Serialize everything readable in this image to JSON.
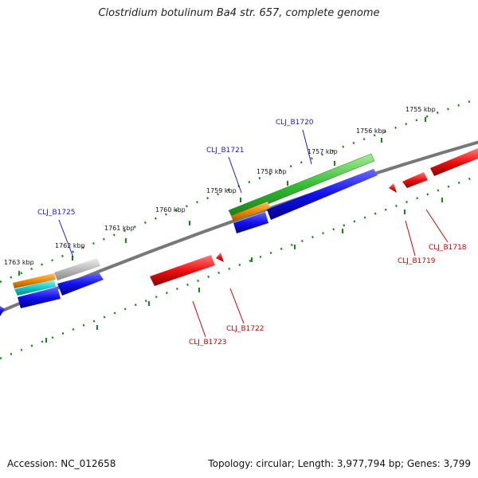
{
  "title": "Clostridium botulinum Ba4 str. 657, complete genome",
  "footer": {
    "accession": "Accession: NC_012658",
    "topology": "Topology: circular; Length: 3,977,794 bp; Genes: 3,799"
  },
  "scale_labels": [
    "1755 kbp",
    "1756 kbp",
    "1757 kbp",
    "1758 kbp",
    "1759 kbp",
    "1760 kbp",
    "1761 kbp",
    "1762 kbp",
    "1763 kbp"
  ],
  "gene_labels_top": [
    "CLJ_B1720",
    "CLJ_B1721",
    "CLJ_B1725"
  ],
  "gene_labels_bottom": [
    "CLJ_B1718",
    "CLJ_B1719",
    "CLJ_B1722",
    "CLJ_B1723"
  ],
  "colors": {
    "forward": "#1010ee",
    "reverse": "#ee1010",
    "green_feature": "#33bb33",
    "orange_feature": "#ee8800",
    "cyan_feature": "#11cccc",
    "gray_feature": "#bbbbbb",
    "backbone": "#777777",
    "ticks": "#118811"
  }
}
